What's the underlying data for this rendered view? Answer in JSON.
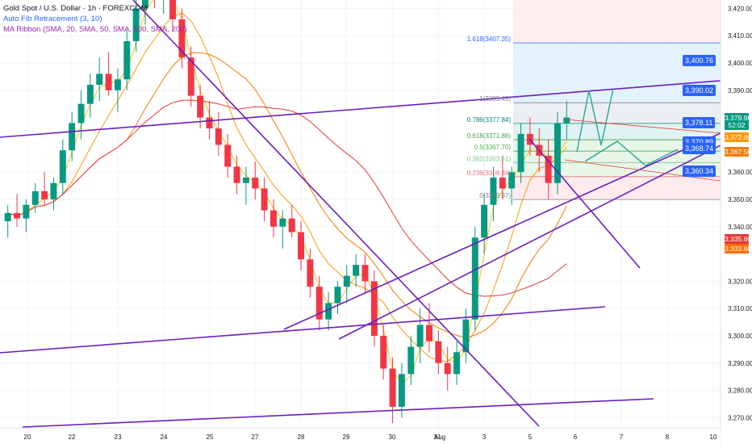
{
  "header": {
    "symbol": "Gold Spot / U.S. Dollar · 1h · FOREXCOM",
    "indicator_fib": "Auto Fib Retracement (3, 10)",
    "indicator_ma": "MA Ribbon (SMA, 20, SMA, 50, SMA, 100, SMA, 200)"
  },
  "chart_data": {
    "type": "line",
    "yaxis_ticks": [
      "3,430.00",
      "3,420.00",
      "3,410.00",
      "3,400.00",
      "3,390.00",
      "3,360.00",
      "3,350.00",
      "3,340.00",
      "3,320.00",
      "3,310.00",
      "3,300.00",
      "3,290.00",
      "3,280.00",
      "3,270.00"
    ],
    "xaxis_ticks": [
      "20",
      "22",
      "23",
      "24",
      "25",
      "27",
      "28",
      "29",
      "30",
      "31",
      "Aug",
      "3",
      "5",
      "6",
      "7",
      "8",
      "10"
    ],
    "fib_levels": [
      {
        "label": "1.618(3407.35)",
        "value": 3407.35
      },
      {
        "label": "1(3385.43)",
        "value": 3385.43
      },
      {
        "label": "0.786(3377.84)",
        "value": 3377.84
      },
      {
        "label": "0.618(3371.88)",
        "value": 3371.88
      },
      {
        "label": "0.5(3367.70)",
        "value": 3367.7
      },
      {
        "label": "0.382(3363.51)",
        "value": 3363.51
      },
      {
        "label": "0.236(3358.34)",
        "value": 3358.34
      },
      {
        "label": "0(3349.97)",
        "value": 3349.97
      }
    ],
    "price_boxes": [
      "3,400.76",
      "3,390.02",
      "3,378.11",
      "3,370.89",
      "3,368.74",
      "3,360.34"
    ],
    "axis_tags": [
      {
        "text": "3,379.98",
        "color": "#089981"
      },
      {
        "text": "52:02",
        "color": "#089981"
      },
      {
        "text": "3,372.89",
        "color": "#ff9800"
      },
      {
        "text": "3,367.56",
        "color": "#f57c00"
      },
      {
        "text": "3,335.60",
        "color": "#e53935"
      },
      {
        "text": "3,333.68",
        "color": "#ff6d00"
      }
    ],
    "candles": [
      [
        3342,
        3348,
        3336,
        3345
      ],
      [
        3345,
        3352,
        3340,
        3343
      ],
      [
        3343,
        3350,
        3338,
        3348
      ],
      [
        3348,
        3356,
        3345,
        3353
      ],
      [
        3353,
        3360,
        3348,
        3350
      ],
      [
        3350,
        3358,
        3346,
        3356
      ],
      [
        3356,
        3372,
        3352,
        3368
      ],
      [
        3368,
        3382,
        3364,
        3378
      ],
      [
        3378,
        3390,
        3372,
        3385
      ],
      [
        3385,
        3396,
        3380,
        3392
      ],
      [
        3392,
        3402,
        3386,
        3396
      ],
      [
        3396,
        3404,
        3388,
        3390
      ],
      [
        3390,
        3398,
        3382,
        3394
      ],
      [
        3394,
        3412,
        3390,
        3408
      ],
      [
        3408,
        3424,
        3404,
        3420
      ],
      [
        3420,
        3432,
        3414,
        3428
      ],
      [
        3428,
        3436,
        3420,
        3424
      ],
      [
        3424,
        3434,
        3418,
        3430
      ],
      [
        3430,
        3432,
        3412,
        3416
      ],
      [
        3416,
        3420,
        3398,
        3402
      ],
      [
        3402,
        3406,
        3384,
        3388
      ],
      [
        3388,
        3392,
        3376,
        3380
      ],
      [
        3380,
        3386,
        3372,
        3376
      ],
      [
        3376,
        3382,
        3366,
        3370
      ],
      [
        3370,
        3374,
        3358,
        3362
      ],
      [
        3362,
        3366,
        3352,
        3356
      ],
      [
        3356,
        3362,
        3348,
        3358
      ],
      [
        3358,
        3364,
        3350,
        3354
      ],
      [
        3354,
        3358,
        3342,
        3346
      ],
      [
        3346,
        3350,
        3336,
        3340
      ],
      [
        3340,
        3346,
        3332,
        3343
      ],
      [
        3343,
        3348,
        3336,
        3338
      ],
      [
        3338,
        3342,
        3324,
        3328
      ],
      [
        3328,
        3332,
        3314,
        3318
      ],
      [
        3318,
        3322,
        3302,
        3306
      ],
      [
        3306,
        3316,
        3302,
        3312
      ],
      [
        3312,
        3320,
        3308,
        3318
      ],
      [
        3318,
        3326,
        3312,
        3322
      ],
      [
        3322,
        3330,
        3318,
        3326
      ],
      [
        3326,
        3330,
        3316,
        3320
      ],
      [
        3320,
        3324,
        3296,
        3300
      ],
      [
        3300,
        3304,
        3284,
        3288
      ],
      [
        3288,
        3292,
        3268,
        3274
      ],
      [
        3274,
        3290,
        3270,
        3286
      ],
      [
        3286,
        3300,
        3282,
        3296
      ],
      [
        3296,
        3310,
        3290,
        3304
      ],
      [
        3304,
        3312,
        3294,
        3298
      ],
      [
        3298,
        3302,
        3286,
        3290
      ],
      [
        3290,
        3296,
        3280,
        3286
      ],
      [
        3286,
        3298,
        3282,
        3294
      ],
      [
        3294,
        3310,
        3290,
        3306
      ],
      [
        3306,
        3340,
        3302,
        3336
      ],
      [
        3336,
        3352,
        3330,
        3348
      ],
      [
        3348,
        3362,
        3342,
        3358
      ],
      [
        3358,
        3366,
        3350,
        3354
      ],
      [
        3354,
        3362,
        3348,
        3360
      ],
      [
        3360,
        3378,
        3356,
        3374
      ],
      [
        3374,
        3380,
        3366,
        3370
      ],
      [
        3370,
        3376,
        3360,
        3366
      ],
      [
        3366,
        3372,
        3350,
        3356
      ],
      [
        3356,
        3382,
        3352,
        3378
      ],
      [
        3378,
        3386,
        3372,
        3380
      ]
    ]
  }
}
